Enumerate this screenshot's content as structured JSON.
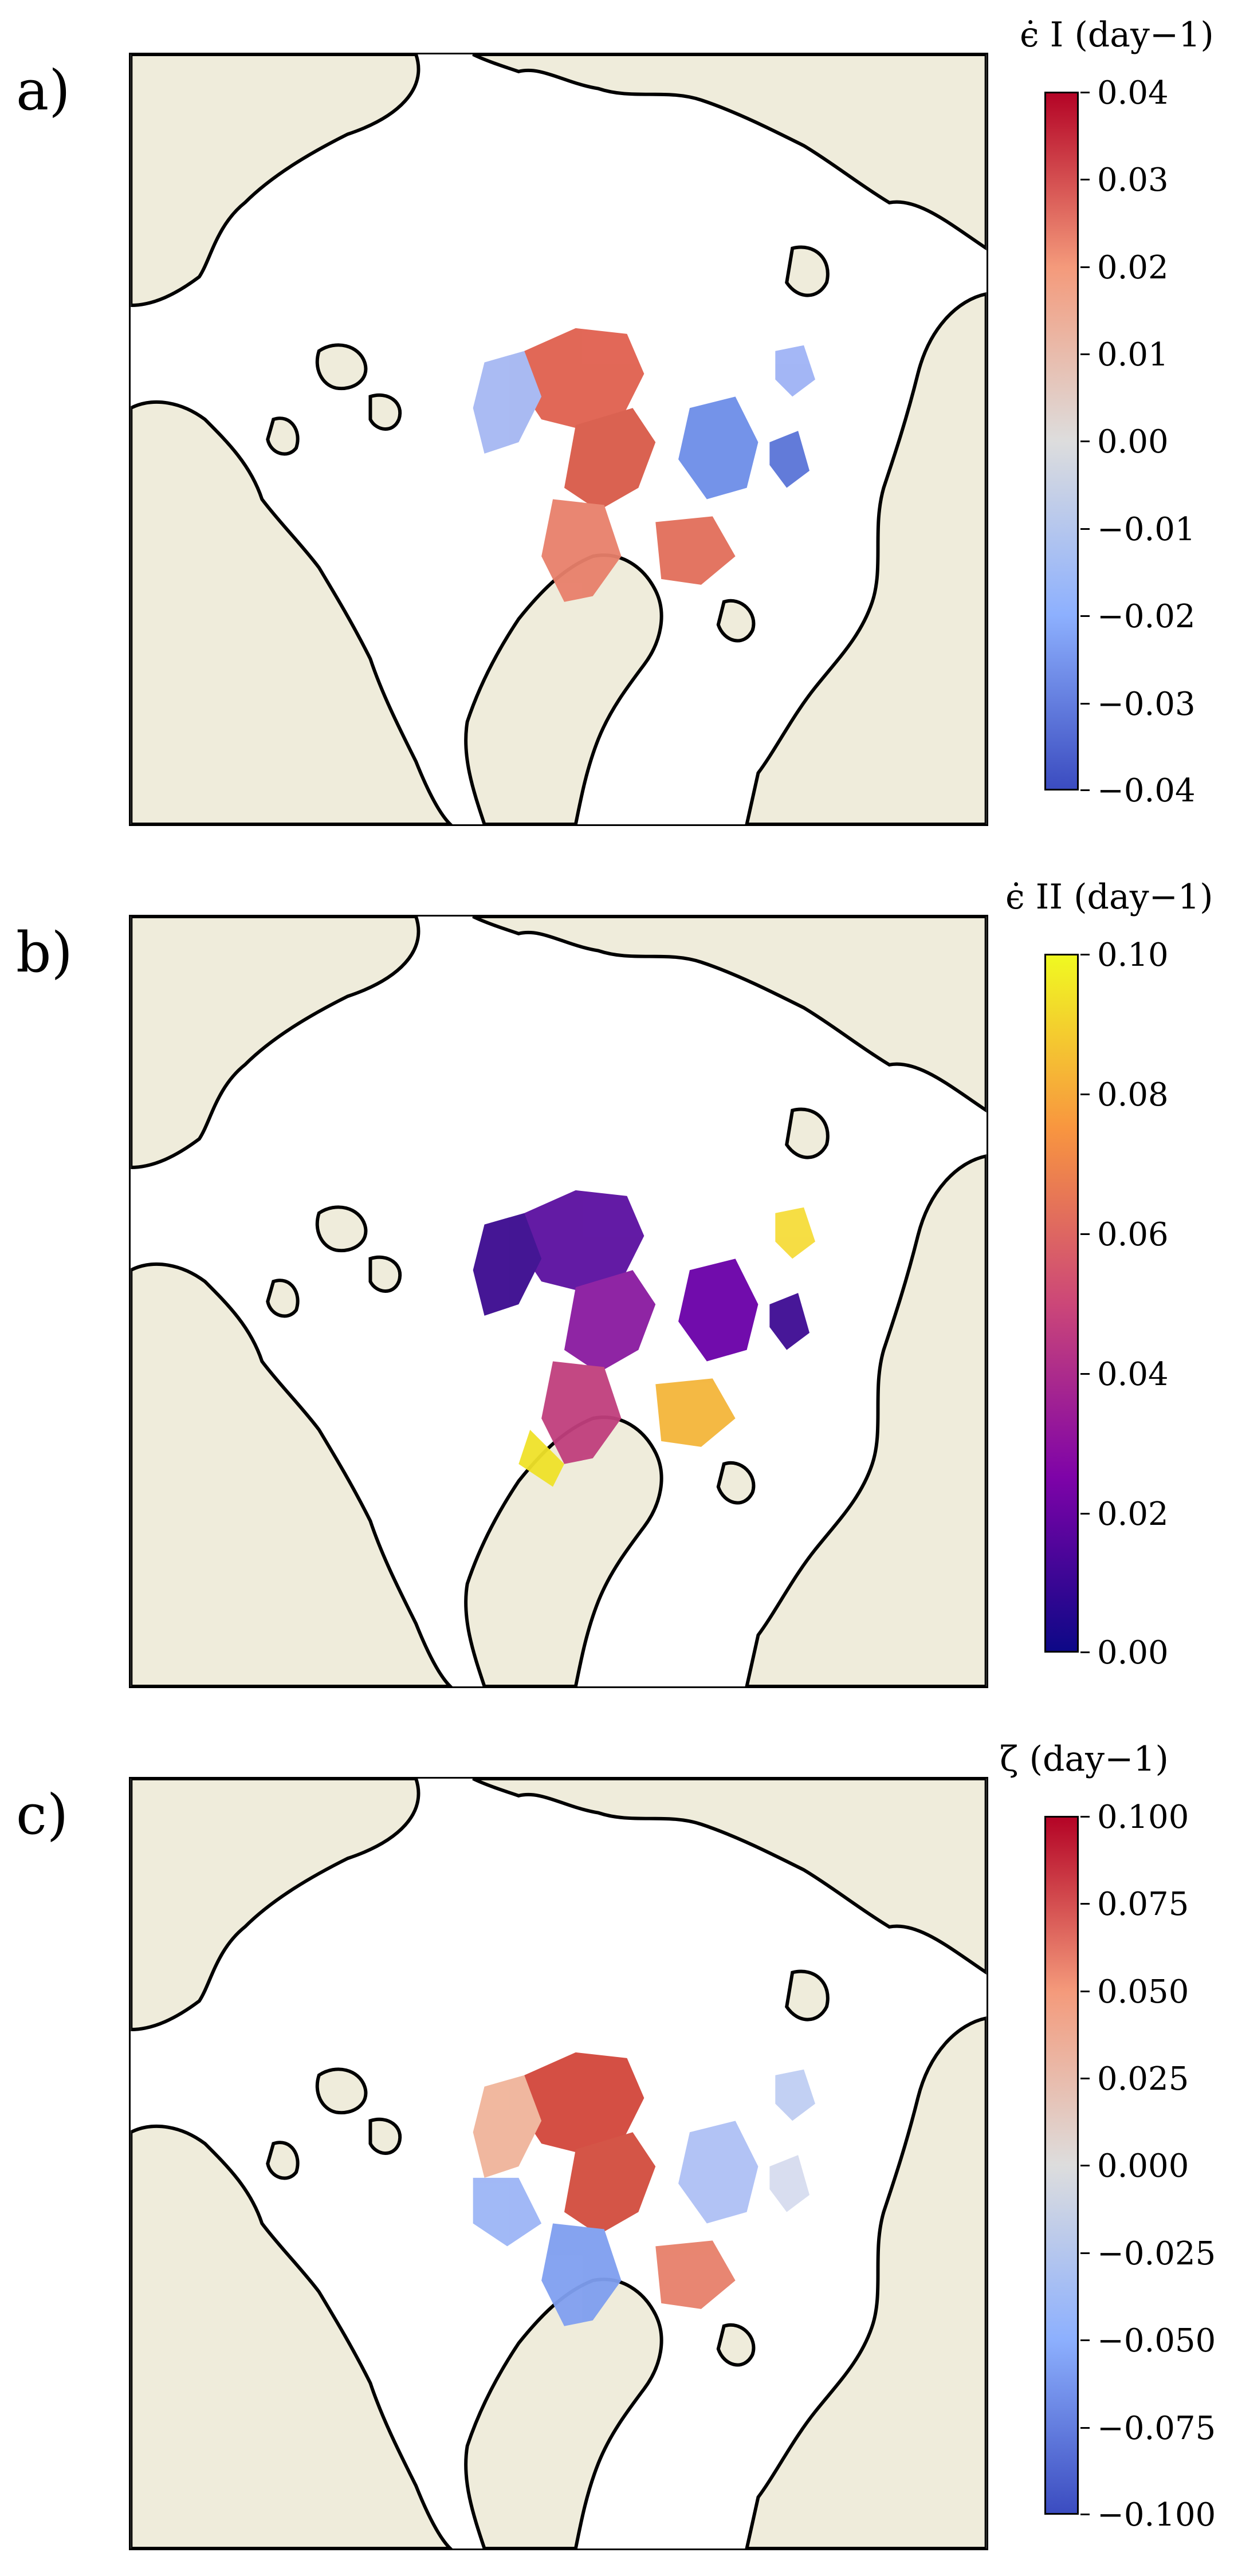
{
  "colors": {
    "land": "#efecdb",
    "ocean": "#ffffff",
    "coast": "#000000"
  },
  "panels": [
    {
      "label": "a)",
      "colorbar_title": "ϵ̇ I (day−1)",
      "colormap": "coolwarm",
      "colormap_colors": [
        "#3b4cc0",
        "#8db0fe",
        "#dddddd",
        "#f49a7b",
        "#b40426"
      ],
      "range": [
        -0.04,
        0.04
      ],
      "ticks": [
        "0.04",
        "0.03",
        "0.02",
        "0.01",
        "0.00",
        "−0.01",
        "−0.02",
        "−0.03",
        "−0.04"
      ]
    },
    {
      "label": "b)",
      "colorbar_title": "ϵ̇ II (day−1)",
      "colormap": "plasma",
      "colormap_colors": [
        "#0d0887",
        "#7e03a8",
        "#cc4778",
        "#f89540",
        "#f0f921"
      ],
      "range": [
        0.0,
        0.1
      ],
      "ticks": [
        "0.10",
        "0.08",
        "0.06",
        "0.04",
        "0.02",
        "0.00"
      ]
    },
    {
      "label": "c)",
      "colorbar_title": "ζ (day−1)",
      "colormap": "coolwarm",
      "colormap_colors": [
        "#3b4cc0",
        "#8db0fe",
        "#dddddd",
        "#f49a7b",
        "#b40426"
      ],
      "range": [
        -0.1,
        0.1
      ],
      "ticks": [
        "0.100",
        "0.075",
        "0.050",
        "0.025",
        "0.000",
        "−0.025",
        "−0.050",
        "−0.075",
        "−0.100"
      ]
    }
  ]
}
